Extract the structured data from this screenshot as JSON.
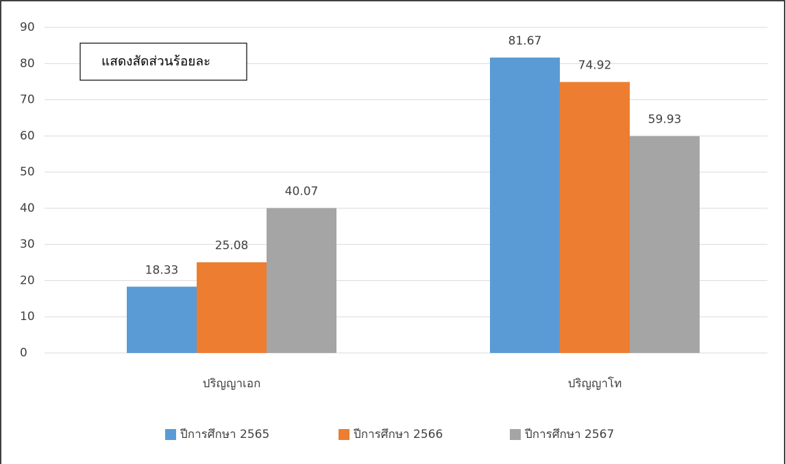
{
  "chart_data": {
    "type": "bar",
    "title": "แสดงสัดส่วนร้อยละ",
    "categories": [
      "ปริญญาเอก",
      "ปริญญาโท"
    ],
    "series": [
      {
        "name": "ปีการศึกษา 2565",
        "color": "#5b9bd5",
        "values": [
          18.33,
          81.67
        ]
      },
      {
        "name": "ปีการศึกษา 2566",
        "color": "#ed7d31",
        "values": [
          25.08,
          74.92
        ]
      },
      {
        "name": "ปีการศึกษา 2567",
        "color": "#a5a5a5",
        "values": [
          40.07,
          59.93
        ]
      }
    ],
    "ylim": [
      0,
      90
    ],
    "yticks": [
      0,
      10,
      20,
      30,
      40,
      50,
      60,
      70,
      80,
      90
    ],
    "grid": true,
    "legend": "bottom"
  }
}
